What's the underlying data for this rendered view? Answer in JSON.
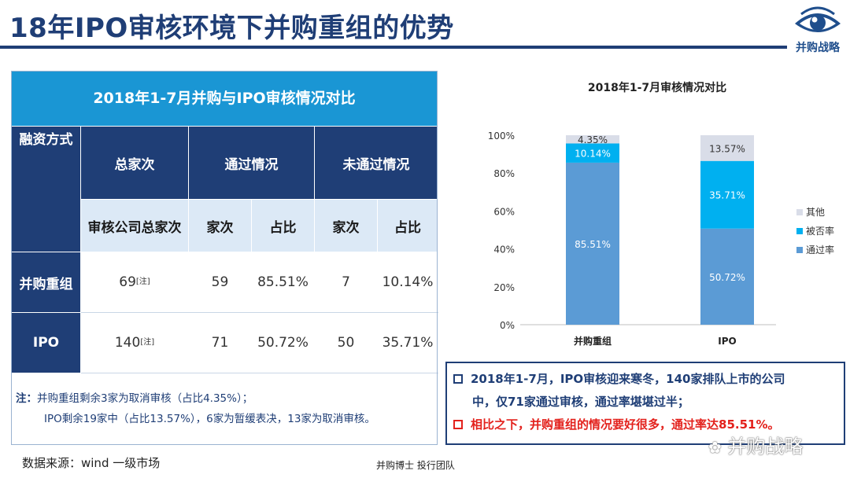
{
  "page": {
    "title": "18年IPO审核环境下并购重组的优势",
    "logo_text": "并购战略"
  },
  "table": {
    "header": "2018年1-7月并购与IPO审核情况对比",
    "col_financing": "融资方式",
    "col_total": "总家次",
    "col_pass": "通过情况",
    "col_fail": "未通过情况",
    "sub_total": "审核公司总家次",
    "sub_count": "家次",
    "sub_ratio": "占比",
    "sub_count2": "家次",
    "sub_ratio2": "占比",
    "note_mark": "[注]",
    "rows": [
      {
        "name": "并购重组",
        "total": "69",
        "pass_count": "59",
        "pass_ratio": "85.51%",
        "fail_count": "7",
        "fail_ratio": "10.14%"
      },
      {
        "name": "IPO",
        "total": "140",
        "pass_count": "71",
        "pass_ratio": "50.72%",
        "fail_count": "50",
        "fail_ratio": "35.71%"
      }
    ]
  },
  "note": {
    "label": "注：",
    "line1": "并购重组剩余3家为取消审核（占比4.35%）；",
    "line2": "IPO剩余19家中（占比13.57%），6家为暂缓表决，13家为取消审核。"
  },
  "source": "数据来源：wind 一级市场",
  "footer": "并购博士 投行团队",
  "chart_data": {
    "type": "bar",
    "stacked": true,
    "title": "2018年1-7月审核情况对比",
    "categories": [
      "并购重组",
      "IPO"
    ],
    "series": [
      {
        "name": "通过率",
        "values": [
          85.51,
          50.72
        ],
        "labels": [
          "85.51%",
          "50.72%"
        ],
        "color": "#5b9bd5"
      },
      {
        "name": "被否率",
        "values": [
          10.14,
          35.71
        ],
        "labels": [
          "10.14%",
          "35.71%"
        ],
        "color": "#00b0f0"
      },
      {
        "name": "其他",
        "values": [
          4.35,
          13.57
        ],
        "labels": [
          "4.35%",
          "13.57%"
        ],
        "color": "#d9dde8"
      }
    ],
    "ylim": [
      0,
      100
    ],
    "yticks": [
      "0%",
      "20%",
      "40%",
      "60%",
      "80%",
      "100%"
    ],
    "legend_position": "right",
    "grid": false
  },
  "textbox": {
    "bullet1": "2018年1-7月，IPO审核迎来寒冬，140家排队上市的公司",
    "bullet1_cont": "中，仅71家通过审核，通过率堪堪过半；",
    "bullet2": "相比之下，并购重组的情况要好很多，通过率达85.51%。"
  },
  "watermark": "并购战略",
  "colors": {
    "navy": "#1f3e76",
    "accent_blue": "#1a96d4",
    "light_blue": "#dce9f6",
    "red": "#e3211c"
  }
}
